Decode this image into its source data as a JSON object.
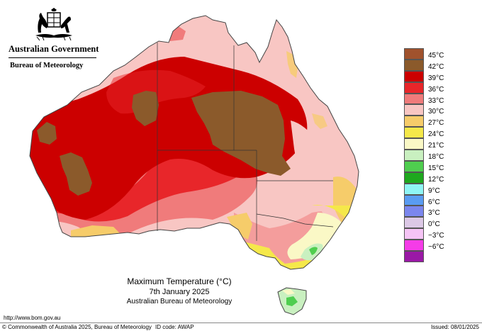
{
  "header": {
    "government": "Australian Government",
    "agency": "Bureau of Meteorology"
  },
  "map": {
    "title": "Maximum Temperature (°C)",
    "date": "7th January 2025",
    "organisation": "Australian Bureau of Meteorology",
    "region": "Australia",
    "variable": "Maximum temperature",
    "grid": false
  },
  "legend": {
    "unit": "°C",
    "items": [
      {
        "label": "45°C",
        "color": "#a0522d"
      },
      {
        "label": "42°C",
        "color": "#8b5a2b"
      },
      {
        "label": "39°C",
        "color": "#cc0000"
      },
      {
        "label": "36°C",
        "color": "#e8262a"
      },
      {
        "label": "33°C",
        "color": "#f07b7b"
      },
      {
        "label": "30°C",
        "color": "#f8c6c3"
      },
      {
        "label": "27°C",
        "color": "#f6cc6a"
      },
      {
        "label": "24°C",
        "color": "#f5e84a"
      },
      {
        "label": "21°C",
        "color": "#faf8c6"
      },
      {
        "label": "18°C",
        "color": "#c9f0c0"
      },
      {
        "label": "15°C",
        "color": "#4fce4f"
      },
      {
        "label": "12°C",
        "color": "#1ea81e"
      },
      {
        "label": "9°C",
        "color": "#8ff5f5"
      },
      {
        "label": "6°C",
        "color": "#5a9cf2"
      },
      {
        "label": "3°C",
        "color": "#7b86ee"
      },
      {
        "label": "0°C",
        "color": "#dcc8e6"
      },
      {
        "label": "−3°C",
        "color": "#f5c4f5"
      },
      {
        "label": "−6°C",
        "color": "#f53ce8"
      },
      {
        "label": "",
        "color": "#9a19a6"
      }
    ]
  },
  "footer": {
    "url": "http://www.bom.gov.au",
    "copyright": "© Commonwealth of Australia 2025, Bureau of Meteorology",
    "id_code": "ID code: AWAP",
    "issued": "Issued: 08/01/2025"
  }
}
